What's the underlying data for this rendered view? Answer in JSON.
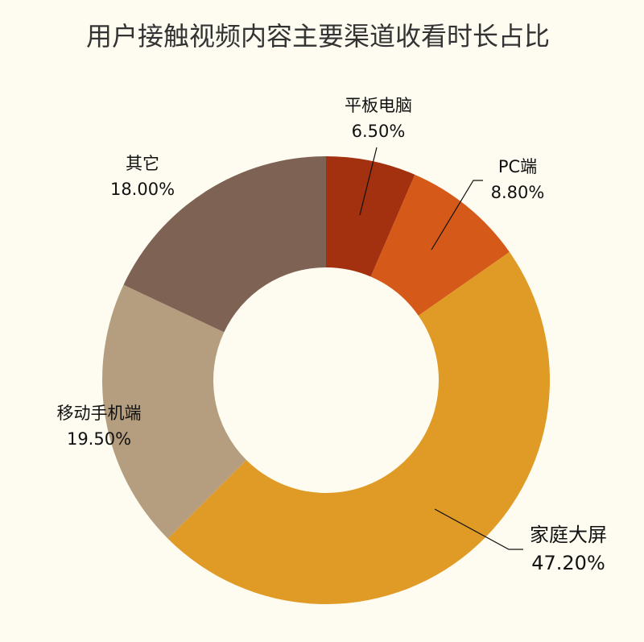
{
  "chart_data": {
    "type": "pie",
    "variant": "donut",
    "title": "用户接触视频内容主要渠道收看时长占比",
    "unit": "%",
    "start": "12 o'clock, clockwise",
    "slices": [
      {
        "label": "平板电脑",
        "value": 6.5,
        "display": "6.50%",
        "color": "#a3300f"
      },
      {
        "label": "PC端",
        "value": 8.8,
        "display": "8.80%",
        "color": "#d55918"
      },
      {
        "label": "家庭大屏",
        "value": 47.2,
        "display": "47.20%",
        "color": "#e09a26"
      },
      {
        "label": "移动手机端",
        "value": 19.5,
        "display": "19.50%",
        "color": "#b59e7f"
      },
      {
        "label": "其它",
        "value": 18.0,
        "display": "18.00%",
        "color": "#7e6254"
      }
    ],
    "legend": "none",
    "background": "#fefcf0"
  }
}
